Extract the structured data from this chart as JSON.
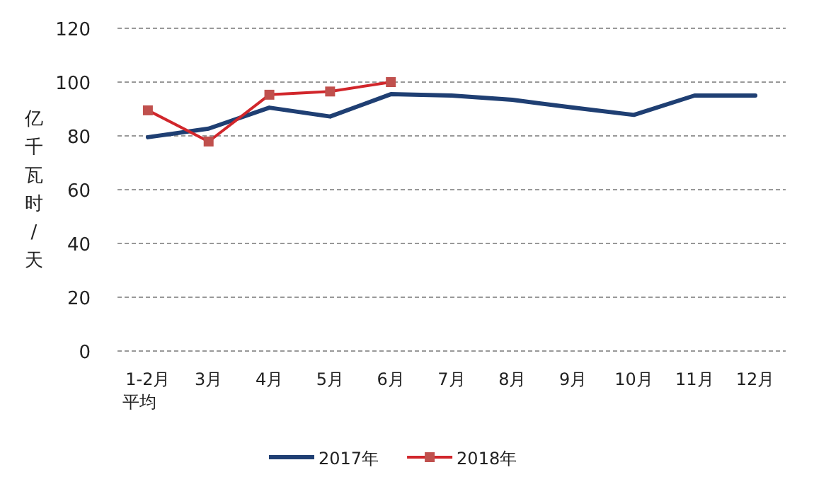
{
  "chart_data": {
    "type": "line",
    "ylabel": "亿千瓦时/天",
    "categories": [
      "1-2月平均",
      "3月",
      "4月",
      "5月",
      "6月",
      "7月",
      "8月",
      "9月",
      "10月",
      "11月",
      "12月"
    ],
    "series": [
      {
        "name": "2017年",
        "color": "#1f3f73",
        "marker": "none",
        "values": [
          79.5,
          82.7,
          90.5,
          87.2,
          95.5,
          95,
          93.4,
          90.5,
          87.8,
          95,
          95
        ]
      },
      {
        "name": "2018年",
        "color": "#d1262b",
        "marker": "square",
        "values": [
          89.5,
          77.9,
          95.3,
          96.5,
          100,
          null,
          null,
          null,
          null,
          null,
          null
        ]
      }
    ],
    "ylim": [
      0,
      120
    ],
    "yticks": [
      0,
      20,
      40,
      60,
      80,
      100,
      120
    ],
    "grid": "y",
    "legend": "bottom",
    "line_style": "solid"
  }
}
